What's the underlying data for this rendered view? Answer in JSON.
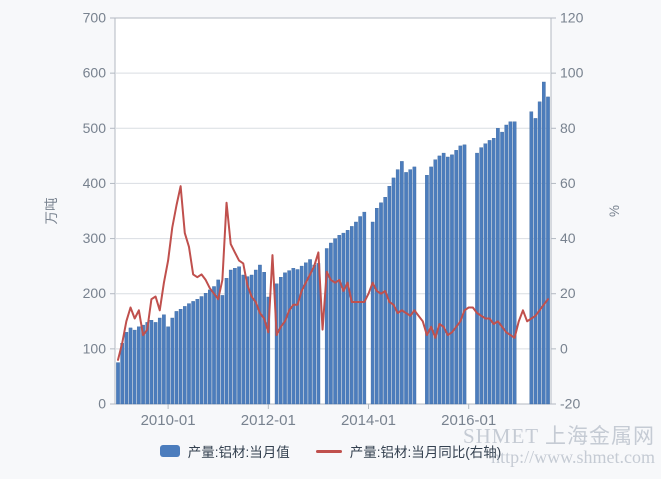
{
  "legend": {
    "bar_label": "产量:铝材:当月值",
    "line_label": "产量:铝材:当月同比(右轴)"
  },
  "watermark": {
    "line1": "SHMET 上海金属网",
    "line2": "http://www.shmet.com"
  },
  "colors": {
    "bar": "#4c7dbd",
    "bar_edge": "#3e69a1",
    "line": "#c0504d",
    "grid": "#d9dde2",
    "axis_border": "#b3b9c2",
    "tick_label": "#78828f",
    "legend_text": "#33404f",
    "plot_bg": "#ffffff",
    "page_bg": "#f7f8fa"
  },
  "chart_data": {
    "type": "bar",
    "subtype": "bar+line dual axis monthly time series",
    "title": "",
    "xlabel": "",
    "grid": true,
    "legend_position": "bottom",
    "left_axis": {
      "title": "万吨",
      "min": 0,
      "max": 700,
      "ticks": [
        0,
        100,
        200,
        300,
        400,
        500,
        600,
        700
      ]
    },
    "right_axis": {
      "title": "%",
      "min": -20,
      "max": 120,
      "ticks": [
        -20,
        0,
        20,
        40,
        60,
        80,
        100,
        120
      ]
    },
    "x_tick_labels": [
      "2010-01",
      "2012-01",
      "2014-01",
      "2016-01"
    ],
    "months": [
      "2009-01",
      "2009-02",
      "2009-03",
      "2009-04",
      "2009-05",
      "2009-06",
      "2009-07",
      "2009-08",
      "2009-09",
      "2009-10",
      "2009-11",
      "2009-12",
      "2010-01",
      "2010-02",
      "2010-03",
      "2010-04",
      "2010-05",
      "2010-06",
      "2010-07",
      "2010-08",
      "2010-09",
      "2010-10",
      "2010-11",
      "2010-12",
      "2011-01",
      "2011-02",
      "2011-03",
      "2011-04",
      "2011-05",
      "2011-06",
      "2011-07",
      "2011-08",
      "2011-09",
      "2011-10",
      "2011-11",
      "2011-12",
      "2012-01",
      "2012-02",
      "2012-03",
      "2012-04",
      "2012-05",
      "2012-06",
      "2012-07",
      "2012-08",
      "2012-09",
      "2012-10",
      "2012-11",
      "2012-12",
      "2013-01",
      "2013-02",
      "2013-03",
      "2013-04",
      "2013-05",
      "2013-06",
      "2013-07",
      "2013-08",
      "2013-09",
      "2013-10",
      "2013-11",
      "2013-12",
      "2014-01",
      "2014-02",
      "2014-03",
      "2014-04",
      "2014-05",
      "2014-06",
      "2014-07",
      "2014-08",
      "2014-09",
      "2014-10",
      "2014-11",
      "2014-12",
      "2015-01",
      "2015-02",
      "2015-03",
      "2015-04",
      "2015-05",
      "2015-06",
      "2015-07",
      "2015-08",
      "2015-09",
      "2015-10",
      "2015-11",
      "2015-12",
      "2016-01",
      "2016-02",
      "2016-03",
      "2016-04",
      "2016-05",
      "2016-06",
      "2016-07",
      "2016-08",
      "2016-09",
      "2016-10",
      "2016-11",
      "2016-12",
      "2017-01",
      "2017-02",
      "2017-03",
      "2017-04",
      "2017-05",
      "2017-06",
      "2017-07",
      "2017-08"
    ],
    "series": [
      {
        "name": "产量:铝材:当月值",
        "type": "bar",
        "axis": "left",
        "unit": "万吨",
        "values": [
          75,
          110,
          130,
          138,
          134,
          140,
          143,
          148,
          152,
          148,
          156,
          162,
          140,
          156,
          168,
          172,
          177,
          182,
          186,
          190,
          195,
          201,
          207,
          213,
          225,
          197,
          228,
          243,
          246,
          249,
          234,
          231,
          234,
          243,
          252,
          239,
          194,
          null,
          218,
          230,
          238,
          242,
          246,
          244,
          250,
          256,
          262,
          252,
          255,
          null,
          282,
          292,
          300,
          306,
          310,
          315,
          322,
          330,
          340,
          348,
          null,
          330,
          355,
          365,
          375,
          395,
          410,
          425,
          440,
          420,
          425,
          430,
          null,
          null,
          415,
          430,
          443,
          450,
          455,
          448,
          452,
          460,
          468,
          470,
          null,
          null,
          455,
          465,
          472,
          478,
          482,
          500,
          493,
          506,
          512,
          512,
          null,
          null,
          null,
          530,
          518,
          548,
          584,
          557
        ]
      },
      {
        "name": "产量:铝材:当月同比(右轴)",
        "type": "line",
        "axis": "right",
        "unit": "%",
        "values": [
          -4,
          2,
          10,
          15,
          11,
          14,
          5,
          7,
          18,
          19,
          14,
          24,
          32,
          44,
          52,
          59,
          42,
          37,
          27,
          26,
          27,
          25,
          22,
          20,
          18,
          25,
          53,
          38,
          35,
          32,
          31,
          23,
          19,
          17,
          13,
          11,
          6,
          34,
          5,
          8,
          10,
          14,
          16,
          16,
          21,
          24,
          27,
          30,
          35,
          7,
          28,
          25,
          24,
          25,
          21,
          24,
          17,
          17,
          17,
          17,
          20,
          24,
          21,
          20,
          21,
          17,
          16,
          13,
          14,
          13,
          12,
          14,
          12,
          10,
          5,
          8,
          4,
          9,
          8,
          5,
          6,
          8,
          10,
          14,
          15,
          15,
          13,
          12,
          11,
          11,
          9,
          10,
          8,
          6,
          5,
          4,
          10,
          14,
          10,
          11,
          12,
          14,
          16,
          18
        ]
      }
    ]
  }
}
